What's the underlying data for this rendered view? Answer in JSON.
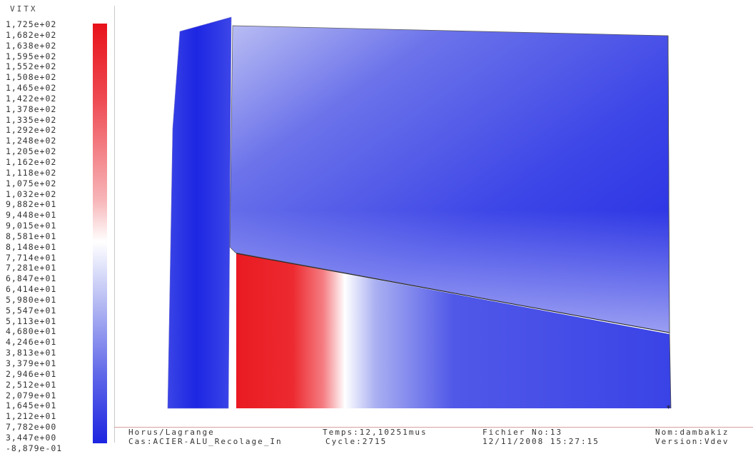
{
  "variable_name": "VITX",
  "legend_values": [
    "1,725e+02",
    "1,682e+02",
    "1,638e+02",
    "1,595e+02",
    "1,552e+02",
    "1,508e+02",
    "1,465e+02",
    "1,422e+02",
    "1,378e+02",
    "1,335e+02",
    "1,292e+02",
    "1,248e+02",
    "1,205e+02",
    "1,162e+02",
    "1,118e+02",
    "1,075e+02",
    "1,032e+02",
    "9,882e+01",
    "9,448e+01",
    "9,015e+01",
    "8,581e+01",
    "8,148e+01",
    "7,714e+01",
    "7,281e+01",
    "6,847e+01",
    "6,414e+01",
    "5,980e+01",
    "5,547e+01",
    "5,113e+01",
    "4,680e+01",
    "4,246e+01",
    "3,813e+01",
    "3,379e+01",
    "2,946e+01",
    "2,512e+01",
    "2,079e+01",
    "1,645e+01",
    "1,212e+01",
    "7,782e+00",
    "3,447e+00",
    "-8,879e-01"
  ],
  "colors": {
    "max": "#e8121a",
    "mid": "#ffffff",
    "min": "#1c24e0"
  },
  "footer": {
    "software": "Horus/Lagrange",
    "case": "Cas:ACIER-ALU_Recolage_In",
    "time": "Temps:12,10251mus",
    "cycle": "Cycle:2715",
    "file": "Fichier No:13",
    "date": "12/11/2008 15:27:15",
    "name": "Nom:dambakiz",
    "version": "Version:Vdev"
  }
}
